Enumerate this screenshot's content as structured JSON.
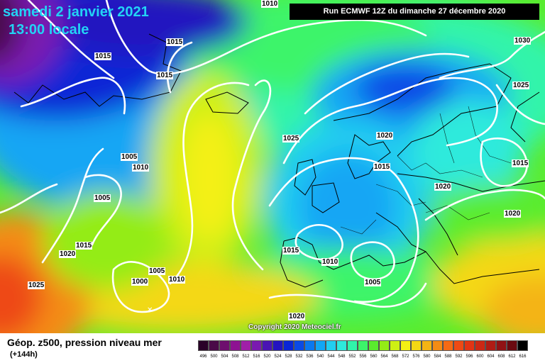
{
  "header": {
    "date": "samedi 2 janvier 2021",
    "time": "13:00 locale",
    "run": "Run ECMWF 12Z du dimanche 27 décembre 2020"
  },
  "isobars": [
    {
      "value": "1010"
    },
    {
      "value": "1015"
    },
    {
      "value": "1015"
    },
    {
      "value": "1015"
    },
    {
      "value": "1030"
    },
    {
      "value": "1025"
    },
    {
      "value": "1025"
    },
    {
      "value": "1020"
    },
    {
      "value": "1005"
    },
    {
      "value": "1010"
    },
    {
      "value": "1015"
    },
    {
      "value": "1005"
    },
    {
      "value": "1020"
    },
    {
      "value": "1015"
    },
    {
      "value": "1015"
    },
    {
      "value": "1020"
    },
    {
      "value": "1020"
    },
    {
      "value": "1025"
    },
    {
      "value": "1020"
    },
    {
      "value": "1005"
    },
    {
      "value": "1010"
    },
    {
      "value": "1000"
    },
    {
      "value": "1015"
    },
    {
      "value": "1010"
    },
    {
      "value": "1005"
    },
    {
      "value": "1020"
    }
  ],
  "copyright": "Copyright 2020 Meteociel.fr",
  "legend": {
    "title": "Géop. z500, pression niveau mer",
    "subtitle": "(+144h)",
    "scale": [
      {
        "label": "496",
        "color": "#2a0028"
      },
      {
        "label": "500",
        "color": "#4a0a48"
      },
      {
        "label": "504",
        "color": "#6e0e6e"
      },
      {
        "label": "508",
        "color": "#8e1292"
      },
      {
        "label": "512",
        "color": "#a020a8"
      },
      {
        "label": "516",
        "color": "#7a1ab0"
      },
      {
        "label": "520",
        "color": "#4a14b4"
      },
      {
        "label": "524",
        "color": "#2414c0"
      },
      {
        "label": "528",
        "color": "#0a26d6"
      },
      {
        "label": "532",
        "color": "#0a4ae6"
      },
      {
        "label": "536",
        "color": "#0a78f0"
      },
      {
        "label": "540",
        "color": "#12a6f4"
      },
      {
        "label": "544",
        "color": "#22cef0"
      },
      {
        "label": "548",
        "color": "#2eeadc"
      },
      {
        "label": "552",
        "color": "#30f4aa"
      },
      {
        "label": "556",
        "color": "#3cf46a"
      },
      {
        "label": "560",
        "color": "#5aec2e"
      },
      {
        "label": "564",
        "color": "#94ec16"
      },
      {
        "label": "568",
        "color": "#cef014"
      },
      {
        "label": "572",
        "color": "#f4f014"
      },
      {
        "label": "576",
        "color": "#f4d814"
      },
      {
        "label": "580",
        "color": "#f4b414"
      },
      {
        "label": "584",
        "color": "#f48c14"
      },
      {
        "label": "588",
        "color": "#f46a14"
      },
      {
        "label": "592",
        "color": "#ee4a14"
      },
      {
        "label": "596",
        "color": "#e23414"
      },
      {
        "label": "600",
        "color": "#cc2814"
      },
      {
        "label": "604",
        "color": "#b01c14"
      },
      {
        "label": "608",
        "color": "#901214"
      },
      {
        "label": "612",
        "color": "#6a0a10"
      },
      {
        "label": "616",
        "color": "#000000"
      }
    ]
  }
}
